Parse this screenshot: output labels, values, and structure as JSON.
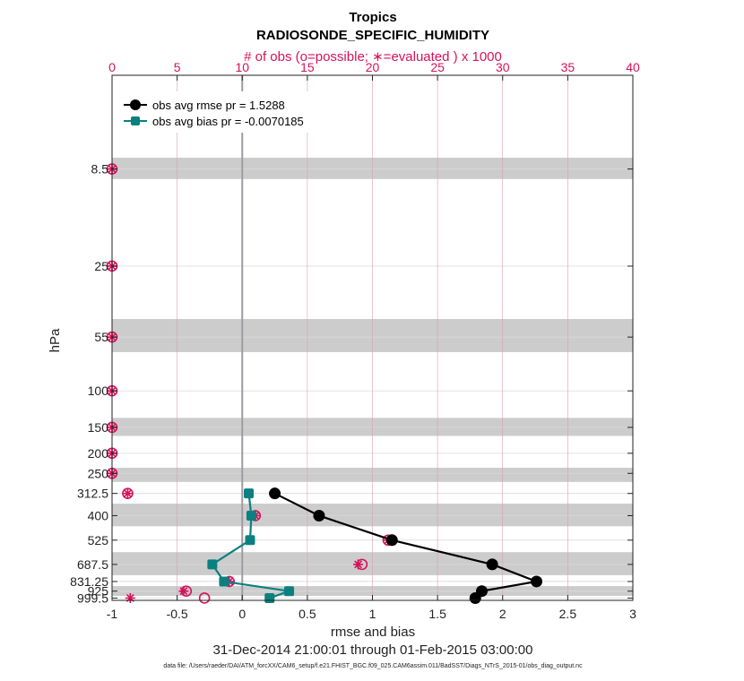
{
  "chart_data": {
    "type": "line",
    "title": "Tropics",
    "subtitle": "RADIOSONDE_SPECIFIC_HUMIDITY",
    "top_axis_label": "# of obs (o=possible; ∗=evaluated ) x 1000",
    "xlabel": "rmse and bias",
    "ylabel": "hPa",
    "date_range": "31-Dec-2014 21:00:01 through 01-Feb-2015 03:00:00",
    "file_note": "data file: /Users/raeder/DAI/ATM_forcXX/CAM6_setup/f.e21.FHIST_BGC.f09_025.CAM6assim.011/BadSST/Diags_NTrS_2015-01/obs_diag_output.nc",
    "xlim": [
      -1,
      3
    ],
    "xticks": [
      -1,
      -0.5,
      0,
      0.5,
      1,
      1.5,
      2,
      2.5,
      3
    ],
    "xtick_labels": [
      "-1",
      "-0.5",
      "0",
      "0.5",
      "1",
      "1.5",
      "2",
      "2.5",
      "3"
    ],
    "top_xlim": [
      0,
      40
    ],
    "top_xticks": [
      0,
      5,
      10,
      15,
      20,
      25,
      30,
      35,
      40
    ],
    "top_xtick_labels": [
      "0",
      "5",
      "10",
      "15",
      "20",
      "25",
      "30",
      "35",
      "40"
    ],
    "ylim_log": [
      1025,
      3
    ],
    "levels": [
      8.5,
      25,
      55,
      100,
      150,
      200,
      250,
      312.5,
      400,
      525,
      687.5,
      831.25,
      925,
      999.5
    ],
    "level_labels": [
      "8.5",
      "25",
      "55",
      "100",
      "150",
      "200",
      "250",
      "312.5",
      "400",
      "525",
      "687.5",
      "831.25",
      "925",
      "999.5"
    ],
    "shaded_bands": [
      [
        7.5,
        9.5
      ],
      [
        45,
        65
      ],
      [
        135,
        165
      ],
      [
        235,
        275
      ],
      [
        350,
        450
      ],
      [
        600,
        775
      ],
      [
        875,
        975
      ]
    ],
    "series": [
      {
        "name": "obs avg rmse pr = 1.5288",
        "color": "#000000",
        "marker": "circle",
        "levels": [
          312.5,
          400,
          525,
          687.5,
          831.25,
          925,
          999.5
        ],
        "values": [
          0.25,
          0.59,
          1.15,
          1.92,
          2.26,
          1.84,
          1.79
        ]
      },
      {
        "name": "obs avg bias pr = -0.0070185",
        "color": "#0b8080",
        "marker": "square",
        "levels": [
          312.5,
          400,
          525,
          687.5,
          831.25,
          925,
          999.5
        ],
        "values": [
          0.05,
          0.07,
          0.06,
          -0.23,
          -0.14,
          0.36,
          0.21
        ]
      }
    ],
    "obs_counts": {
      "color": "#d6125a",
      "levels": [
        8.5,
        25,
        55,
        100,
        150,
        200,
        250,
        312.5,
        400,
        525,
        687.5,
        831.25,
        925,
        999.5
      ],
      "possible": [
        0,
        0,
        0,
        0,
        0,
        0,
        0,
        1.2,
        11.0,
        21.2,
        19.2,
        9.0,
        5.7,
        7.1
      ],
      "evaluated": [
        0,
        0,
        0,
        0,
        0,
        0,
        0,
        1.2,
        11.0,
        21.2,
        18.9,
        9.0,
        5.5,
        1.4
      ]
    }
  }
}
